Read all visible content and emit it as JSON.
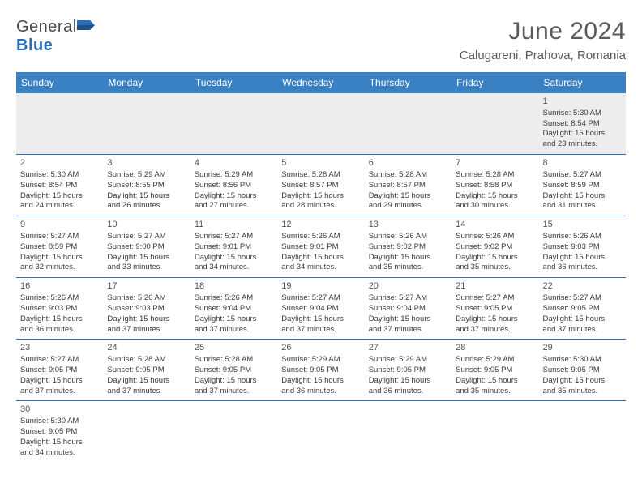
{
  "brand": {
    "word1": "General",
    "word2": "Blue"
  },
  "title": "June 2024",
  "location": "Calugareni, Prahova, Romania",
  "colors": {
    "header_bg": "#3a81c4",
    "header_fg": "#ffffff",
    "rule": "#2a6db8"
  },
  "weekdays": [
    "Sunday",
    "Monday",
    "Tuesday",
    "Wednesday",
    "Thursday",
    "Friday",
    "Saturday"
  ],
  "weeks": [
    [
      null,
      null,
      null,
      null,
      null,
      null,
      {
        "d": "1",
        "sr": "Sunrise: 5:30 AM",
        "ss": "Sunset: 8:54 PM",
        "dl1": "Daylight: 15 hours",
        "dl2": "and 23 minutes."
      }
    ],
    [
      {
        "d": "2",
        "sr": "Sunrise: 5:30 AM",
        "ss": "Sunset: 8:54 PM",
        "dl1": "Daylight: 15 hours",
        "dl2": "and 24 minutes."
      },
      {
        "d": "3",
        "sr": "Sunrise: 5:29 AM",
        "ss": "Sunset: 8:55 PM",
        "dl1": "Daylight: 15 hours",
        "dl2": "and 26 minutes."
      },
      {
        "d": "4",
        "sr": "Sunrise: 5:29 AM",
        "ss": "Sunset: 8:56 PM",
        "dl1": "Daylight: 15 hours",
        "dl2": "and 27 minutes."
      },
      {
        "d": "5",
        "sr": "Sunrise: 5:28 AM",
        "ss": "Sunset: 8:57 PM",
        "dl1": "Daylight: 15 hours",
        "dl2": "and 28 minutes."
      },
      {
        "d": "6",
        "sr": "Sunrise: 5:28 AM",
        "ss": "Sunset: 8:57 PM",
        "dl1": "Daylight: 15 hours",
        "dl2": "and 29 minutes."
      },
      {
        "d": "7",
        "sr": "Sunrise: 5:28 AM",
        "ss": "Sunset: 8:58 PM",
        "dl1": "Daylight: 15 hours",
        "dl2": "and 30 minutes."
      },
      {
        "d": "8",
        "sr": "Sunrise: 5:27 AM",
        "ss": "Sunset: 8:59 PM",
        "dl1": "Daylight: 15 hours",
        "dl2": "and 31 minutes."
      }
    ],
    [
      {
        "d": "9",
        "sr": "Sunrise: 5:27 AM",
        "ss": "Sunset: 8:59 PM",
        "dl1": "Daylight: 15 hours",
        "dl2": "and 32 minutes."
      },
      {
        "d": "10",
        "sr": "Sunrise: 5:27 AM",
        "ss": "Sunset: 9:00 PM",
        "dl1": "Daylight: 15 hours",
        "dl2": "and 33 minutes."
      },
      {
        "d": "11",
        "sr": "Sunrise: 5:27 AM",
        "ss": "Sunset: 9:01 PM",
        "dl1": "Daylight: 15 hours",
        "dl2": "and 34 minutes."
      },
      {
        "d": "12",
        "sr": "Sunrise: 5:26 AM",
        "ss": "Sunset: 9:01 PM",
        "dl1": "Daylight: 15 hours",
        "dl2": "and 34 minutes."
      },
      {
        "d": "13",
        "sr": "Sunrise: 5:26 AM",
        "ss": "Sunset: 9:02 PM",
        "dl1": "Daylight: 15 hours",
        "dl2": "and 35 minutes."
      },
      {
        "d": "14",
        "sr": "Sunrise: 5:26 AM",
        "ss": "Sunset: 9:02 PM",
        "dl1": "Daylight: 15 hours",
        "dl2": "and 35 minutes."
      },
      {
        "d": "15",
        "sr": "Sunrise: 5:26 AM",
        "ss": "Sunset: 9:03 PM",
        "dl1": "Daylight: 15 hours",
        "dl2": "and 36 minutes."
      }
    ],
    [
      {
        "d": "16",
        "sr": "Sunrise: 5:26 AM",
        "ss": "Sunset: 9:03 PM",
        "dl1": "Daylight: 15 hours",
        "dl2": "and 36 minutes."
      },
      {
        "d": "17",
        "sr": "Sunrise: 5:26 AM",
        "ss": "Sunset: 9:03 PM",
        "dl1": "Daylight: 15 hours",
        "dl2": "and 37 minutes."
      },
      {
        "d": "18",
        "sr": "Sunrise: 5:26 AM",
        "ss": "Sunset: 9:04 PM",
        "dl1": "Daylight: 15 hours",
        "dl2": "and 37 minutes."
      },
      {
        "d": "19",
        "sr": "Sunrise: 5:27 AM",
        "ss": "Sunset: 9:04 PM",
        "dl1": "Daylight: 15 hours",
        "dl2": "and 37 minutes."
      },
      {
        "d": "20",
        "sr": "Sunrise: 5:27 AM",
        "ss": "Sunset: 9:04 PM",
        "dl1": "Daylight: 15 hours",
        "dl2": "and 37 minutes."
      },
      {
        "d": "21",
        "sr": "Sunrise: 5:27 AM",
        "ss": "Sunset: 9:05 PM",
        "dl1": "Daylight: 15 hours",
        "dl2": "and 37 minutes."
      },
      {
        "d": "22",
        "sr": "Sunrise: 5:27 AM",
        "ss": "Sunset: 9:05 PM",
        "dl1": "Daylight: 15 hours",
        "dl2": "and 37 minutes."
      }
    ],
    [
      {
        "d": "23",
        "sr": "Sunrise: 5:27 AM",
        "ss": "Sunset: 9:05 PM",
        "dl1": "Daylight: 15 hours",
        "dl2": "and 37 minutes."
      },
      {
        "d": "24",
        "sr": "Sunrise: 5:28 AM",
        "ss": "Sunset: 9:05 PM",
        "dl1": "Daylight: 15 hours",
        "dl2": "and 37 minutes."
      },
      {
        "d": "25",
        "sr": "Sunrise: 5:28 AM",
        "ss": "Sunset: 9:05 PM",
        "dl1": "Daylight: 15 hours",
        "dl2": "and 37 minutes."
      },
      {
        "d": "26",
        "sr": "Sunrise: 5:29 AM",
        "ss": "Sunset: 9:05 PM",
        "dl1": "Daylight: 15 hours",
        "dl2": "and 36 minutes."
      },
      {
        "d": "27",
        "sr": "Sunrise: 5:29 AM",
        "ss": "Sunset: 9:05 PM",
        "dl1": "Daylight: 15 hours",
        "dl2": "and 36 minutes."
      },
      {
        "d": "28",
        "sr": "Sunrise: 5:29 AM",
        "ss": "Sunset: 9:05 PM",
        "dl1": "Daylight: 15 hours",
        "dl2": "and 35 minutes."
      },
      {
        "d": "29",
        "sr": "Sunrise: 5:30 AM",
        "ss": "Sunset: 9:05 PM",
        "dl1": "Daylight: 15 hours",
        "dl2": "and 35 minutes."
      }
    ],
    [
      {
        "d": "30",
        "sr": "Sunrise: 5:30 AM",
        "ss": "Sunset: 9:05 PM",
        "dl1": "Daylight: 15 hours",
        "dl2": "and 34 minutes."
      },
      null,
      null,
      null,
      null,
      null,
      null
    ]
  ]
}
